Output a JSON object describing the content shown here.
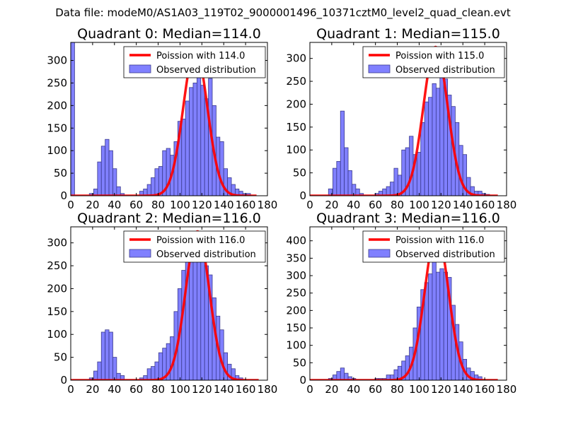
{
  "suptitle": "Data file: modeM0/AS1A03_119T02_9000001496_10371cztM0_level2_quad_clean.evt",
  "colors": {
    "bar_fill": "#8080ff",
    "bar_edge": "#3a3a8c",
    "curve": "#ff0000"
  },
  "chart_data": [
    {
      "type": "bar",
      "title": "Quadrant 0: Median=114.0",
      "xlim": [
        0,
        180
      ],
      "ylim": [
        0,
        340
      ],
      "xticks": [
        "0",
        "20",
        "40",
        "60",
        "80",
        "100",
        "120",
        "140",
        "160",
        "180"
      ],
      "yticks": [
        "0",
        "50",
        "100",
        "150",
        "200",
        "250",
        "300"
      ],
      "ytick_values": [
        0,
        50,
        100,
        150,
        200,
        250,
        300
      ],
      "legend": {
        "curve_label": "Poission with 114.0",
        "bars_label": "Observed distribution",
        "location": "top-right"
      },
      "series": [
        {
          "name": "Observed distribution",
          "bin_width": 3.5,
          "bins": [
            [
              0,
              340
            ],
            [
              17,
              5
            ],
            [
              21,
              15
            ],
            [
              24.5,
              75
            ],
            [
              28,
              110
            ],
            [
              31.5,
              125
            ],
            [
              35,
              100
            ],
            [
              38.5,
              60
            ],
            [
              42,
              20
            ],
            [
              45.5,
              5
            ],
            [
              63,
              10
            ],
            [
              66.5,
              15
            ],
            [
              70,
              25
            ],
            [
              73.5,
              40
            ],
            [
              77,
              60
            ],
            [
              80.5,
              65
            ],
            [
              84,
              100
            ],
            [
              87.5,
              105
            ],
            [
              91,
              90
            ],
            [
              94.5,
              120
            ],
            [
              98,
              165
            ],
            [
              101.5,
              170
            ],
            [
              105,
              210
            ],
            [
              108.5,
              240
            ],
            [
              112,
              250
            ],
            [
              115.5,
              325
            ],
            [
              119,
              245
            ],
            [
              122.5,
              215
            ],
            [
              126,
              260
            ],
            [
              129.5,
              200
            ],
            [
              133,
              130
            ],
            [
              136.5,
              120
            ],
            [
              140,
              60
            ],
            [
              143.5,
              40
            ],
            [
              147,
              25
            ],
            [
              150.5,
              15
            ],
            [
              154,
              10
            ],
            [
              157.5,
              5
            ],
            [
              161,
              5
            ]
          ]
        },
        {
          "name": "Poission with 114.0",
          "mean": 114.0,
          "sigma": 11.0,
          "peak": 325,
          "x_range": [
            0,
            170
          ]
        }
      ]
    },
    {
      "type": "bar",
      "title": "Quadrant 1: Median=115.0",
      "xlim": [
        0,
        180
      ],
      "ylim": [
        0,
        335
      ],
      "xticks": [
        "0",
        "20",
        "40",
        "60",
        "80",
        "100",
        "120",
        "140",
        "160",
        "180"
      ],
      "yticks": [
        "0",
        "50",
        "100",
        "150",
        "200",
        "250",
        "300"
      ],
      "ytick_values": [
        0,
        50,
        100,
        150,
        200,
        250,
        300
      ],
      "legend": {
        "curve_label": "Poission with 115.0",
        "bars_label": "Observed distribution",
        "location": "top-right"
      },
      "series": [
        {
          "name": "Observed distribution",
          "bin_width": 3.5,
          "bins": [
            [
              17,
              15
            ],
            [
              21,
              60
            ],
            [
              24.5,
              75
            ],
            [
              28,
              185
            ],
            [
              31.5,
              105
            ],
            [
              35,
              55
            ],
            [
              38.5,
              25
            ],
            [
              42,
              15
            ],
            [
              45.5,
              5
            ],
            [
              59.5,
              5
            ],
            [
              63,
              10
            ],
            [
              66.5,
              15
            ],
            [
              70,
              20
            ],
            [
              73.5,
              30
            ],
            [
              77,
              60
            ],
            [
              80.5,
              45
            ],
            [
              84,
              100
            ],
            [
              87.5,
              105
            ],
            [
              91,
              130
            ],
            [
              94.5,
              90
            ],
            [
              98,
              95
            ],
            [
              101.5,
              160
            ],
            [
              105,
              205
            ],
            [
              108.5,
              215
            ],
            [
              112,
              245
            ],
            [
              115.5,
              235
            ],
            [
              119,
              300
            ],
            [
              122.5,
              255
            ],
            [
              126,
              220
            ],
            [
              129.5,
              195
            ],
            [
              133,
              160
            ],
            [
              136.5,
              110
            ],
            [
              140,
              90
            ],
            [
              143.5,
              40
            ],
            [
              147,
              20
            ],
            [
              150.5,
              10
            ],
            [
              154,
              10
            ],
            [
              157.5,
              5
            ],
            [
              161,
              3
            ]
          ]
        },
        {
          "name": "Poission with 115.0",
          "mean": 115.0,
          "sigma": 11.0,
          "peak": 325,
          "x_range": [
            0,
            172
          ]
        }
      ]
    },
    {
      "type": "bar",
      "title": "Quadrant 2: Median=116.0",
      "xlim": [
        0,
        180
      ],
      "ylim": [
        0,
        335
      ],
      "xticks": [
        "0",
        "20",
        "40",
        "60",
        "80",
        "100",
        "120",
        "140",
        "160",
        "180"
      ],
      "yticks": [
        "0",
        "50",
        "100",
        "150",
        "200",
        "250",
        "300"
      ],
      "ytick_values": [
        0,
        50,
        100,
        150,
        200,
        250,
        300
      ],
      "legend": {
        "curve_label": "Poission with 116.0",
        "bars_label": "Observed distribution",
        "location": "top-right"
      },
      "series": [
        {
          "name": "Observed distribution",
          "bin_width": 3.5,
          "bins": [
            [
              17,
              5
            ],
            [
              21,
              20
            ],
            [
              24.5,
              40
            ],
            [
              28,
              105
            ],
            [
              31.5,
              110
            ],
            [
              35,
              105
            ],
            [
              38.5,
              50
            ],
            [
              42,
              15
            ],
            [
              45.5,
              10
            ],
            [
              63,
              5
            ],
            [
              66.5,
              10
            ],
            [
              70,
              25
            ],
            [
              73.5,
              30
            ],
            [
              77,
              40
            ],
            [
              80.5,
              60
            ],
            [
              84,
              70
            ],
            [
              87.5,
              80
            ],
            [
              91,
              95
            ],
            [
              94.5,
              150
            ],
            [
              98,
              200
            ],
            [
              101.5,
              240
            ],
            [
              105,
              270
            ],
            [
              108.5,
              310
            ],
            [
              112,
              290
            ],
            [
              115.5,
              310
            ],
            [
              119,
              265
            ],
            [
              122.5,
              250
            ],
            [
              126,
              230
            ],
            [
              129.5,
              180
            ],
            [
              133,
              140
            ],
            [
              136.5,
              110
            ],
            [
              140,
              60
            ],
            [
              143.5,
              35
            ],
            [
              147,
              25
            ],
            [
              150.5,
              10
            ],
            [
              154,
              5
            ]
          ]
        },
        {
          "name": "Poission with 116.0",
          "mean": 116.0,
          "sigma": 10.8,
          "peak": 325,
          "x_range": [
            0,
            172
          ]
        }
      ]
    },
    {
      "type": "bar",
      "title": "Quadrant 3: Median=116.0",
      "xlim": [
        0,
        180
      ],
      "ylim": [
        0,
        440
      ],
      "xticks": [
        "0",
        "20",
        "40",
        "60",
        "80",
        "100",
        "120",
        "140",
        "160",
        "180"
      ],
      "yticks": [
        "0",
        "50",
        "100",
        "150",
        "200",
        "250",
        "300",
        "350",
        "400"
      ],
      "ytick_values": [
        0,
        50,
        100,
        150,
        200,
        250,
        300,
        350,
        400
      ],
      "legend": {
        "curve_label": "Poission with 116.0",
        "bars_label": "Observed distribution",
        "location": "top-right"
      },
      "series": [
        {
          "name": "Observed distribution",
          "bin_width": 3.5,
          "bins": [
            [
              17,
              5
            ],
            [
              21,
              15
            ],
            [
              24.5,
              25
            ],
            [
              28,
              35
            ],
            [
              31.5,
              20
            ],
            [
              35,
              10
            ],
            [
              38.5,
              5
            ],
            [
              59.5,
              5
            ],
            [
              63,
              5
            ],
            [
              66.5,
              5
            ],
            [
              70,
              15
            ],
            [
              73.5,
              15
            ],
            [
              77,
              30
            ],
            [
              80.5,
              40
            ],
            [
              84,
              55
            ],
            [
              87.5,
              70
            ],
            [
              91,
              95
            ],
            [
              94.5,
              150
            ],
            [
              98,
              210
            ],
            [
              101.5,
              260
            ],
            [
              105,
              280
            ],
            [
              108.5,
              305
            ],
            [
              112,
              360
            ],
            [
              115.5,
              310
            ],
            [
              119,
              320
            ],
            [
              122.5,
              310
            ],
            [
              126,
              295
            ],
            [
              129.5,
              215
            ],
            [
              133,
              160
            ],
            [
              136.5,
              110
            ],
            [
              140,
              60
            ],
            [
              143.5,
              35
            ],
            [
              147,
              25
            ],
            [
              150.5,
              15
            ],
            [
              154,
              10
            ]
          ]
        },
        {
          "name": "Poission with 116.0",
          "mean": 116.0,
          "sigma": 10.8,
          "peak": 425,
          "x_range": [
            0,
            172
          ]
        }
      ]
    }
  ]
}
